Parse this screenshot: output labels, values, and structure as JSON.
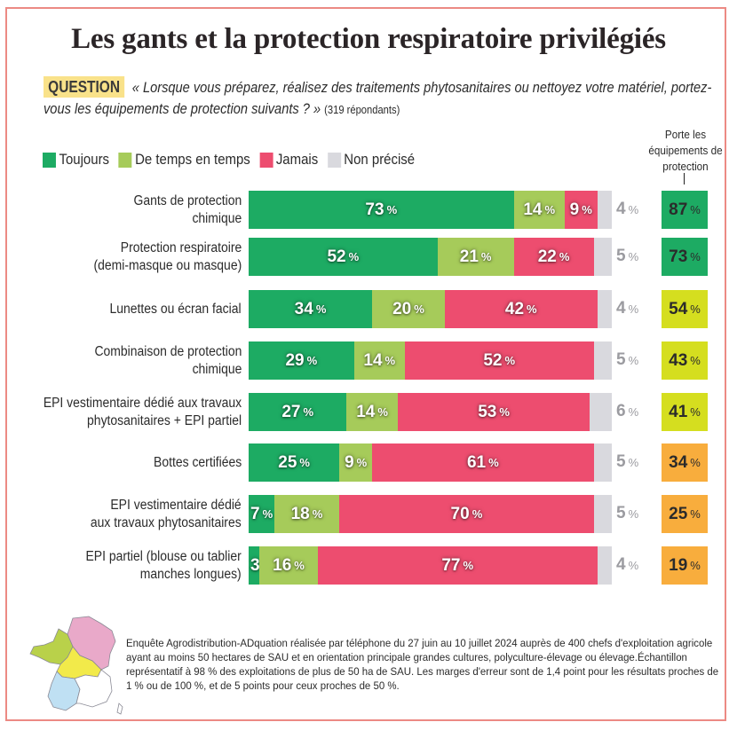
{
  "title": "Les gants et la protection respiratoire privilégiés",
  "question": {
    "badge": "QUESTION",
    "text": "« Lorsque vous préparez, réalisez des traitements phytosanitaires ou nettoyez votre matériel, portez-vous les équipements de protection suivants ? »",
    "respondents": "(319 répondants)"
  },
  "legend": [
    {
      "label": "Toujours",
      "color": "#1dab63"
    },
    {
      "label": "De temps en temps",
      "color": "#a6cb5a"
    },
    {
      "label": "Jamais",
      "color": "#ed4d6f"
    },
    {
      "label": "Non précisé",
      "color": "#d9d9de"
    }
  ],
  "total_column_header": "Porte les équipements de protection",
  "total_colors": {
    "high": "#1dab63",
    "mid": "#d5de1f",
    "low": "#f8ad3d"
  },
  "footer": "Enquête Agrodistribution-ADquation réalisée par téléphone du 27 juin au 10 juillet 2024 auprès de 400 chefs d'exploitation agricole ayant au moins 50 hectares de SAU et en orientation principale grandes cultures, polyculture-élevage ou élevage.Échantillon représentatif à 98 % des exploitations de plus de 50 ha de SAU. Les marges d'erreur sont de 1,4 point pour les résultats proches de 1 % ou de 100 %, et de 5 points pour ceux proches de 50 %.",
  "map_icon": "france-regions-map-icon",
  "chart_data": {
    "type": "bar",
    "orientation": "horizontal-stacked",
    "title": "Les gants et la protection respiratoire privilégiés",
    "unit": "%",
    "xlim": [
      0,
      100
    ],
    "grid": false,
    "legend_position": "top-left",
    "categories": [
      "Gants de protection chimique",
      "Protection respiratoire (demi-masque ou masque)",
      "Lunettes ou écran facial",
      "Combinaison de protection chimique",
      "EPI vestimentaire dédié aux travaux phytosanitaires + EPI partiel",
      "Bottes certifiées",
      "EPI vestimentaire dédié aux travaux phytosanitaires",
      "EPI partiel (blouse ou tablier manches longues)"
    ],
    "category_lines": [
      [
        "Gants de protection",
        "chimique"
      ],
      [
        "Protection respiratoire",
        "(demi-masque ou masque)"
      ],
      [
        "Lunettes ou écran facial"
      ],
      [
        "Combinaison de protection",
        "chimique"
      ],
      [
        "EPI vestimentaire dédié aux travaux",
        "phytosanitaires + EPI partiel"
      ],
      [
        "Bottes certifiées"
      ],
      [
        "EPI vestimentaire dédié",
        "aux travaux phytosanitaires"
      ],
      [
        "EPI partiel (blouse ou tablier",
        "manches longues)"
      ]
    ],
    "series": [
      {
        "name": "Toujours",
        "values": [
          73,
          52,
          34,
          29,
          27,
          25,
          7,
          3
        ]
      },
      {
        "name": "De temps en temps",
        "values": [
          14,
          21,
          20,
          14,
          14,
          9,
          18,
          16
        ]
      },
      {
        "name": "Jamais",
        "values": [
          9,
          22,
          42,
          52,
          53,
          61,
          70,
          77
        ]
      },
      {
        "name": "Non précisé",
        "values": [
          4,
          5,
          4,
          5,
          6,
          5,
          5,
          4
        ]
      }
    ],
    "totals": {
      "name": "Porte les équipements de protection",
      "values": [
        87,
        73,
        54,
        43,
        41,
        34,
        25,
        19
      ],
      "color_levels": [
        "high",
        "high",
        "mid",
        "mid",
        "mid",
        "low",
        "low",
        "low"
      ]
    }
  }
}
